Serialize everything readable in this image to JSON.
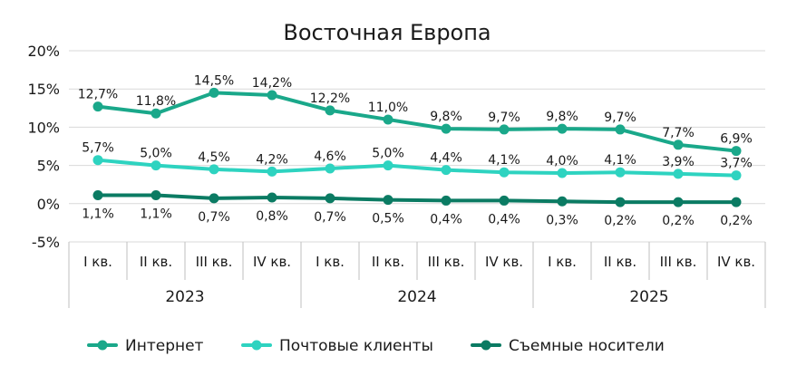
{
  "chart_data": {
    "type": "line",
    "title": "Восточная Европа",
    "ylim": [
      -5,
      20
    ],
    "y_ticks": [
      "-5%",
      "0%",
      "5%",
      "10%",
      "15%",
      "20%"
    ],
    "y_tick_values": [
      -5,
      0,
      5,
      10,
      15,
      20
    ],
    "categories": [
      "I кв.",
      "II кв.",
      "III кв.",
      "IV кв.",
      "I кв.",
      "II кв.",
      "III кв.",
      "IV кв.",
      "I кв.",
      "II кв.",
      "III кв.",
      "IV кв."
    ],
    "groups": [
      {
        "label": "2023",
        "count": 4
      },
      {
        "label": "2024",
        "count": 4
      },
      {
        "label": "2025",
        "count": 4
      }
    ],
    "grid": true,
    "legend_position": "bottom",
    "series": [
      {
        "name": "Интернет",
        "color": "#1aa88a",
        "label_position": "above",
        "values": [
          12.7,
          11.8,
          14.5,
          14.2,
          12.2,
          11.0,
          9.8,
          9.7,
          9.8,
          9.7,
          7.7,
          6.9
        ],
        "labels": [
          "12,7%",
          "11,8%",
          "14,5%",
          "14,2%",
          "12,2%",
          "11,0%",
          "9,8%",
          "9,7%",
          "9,8%",
          "9,7%",
          "7,7%",
          "6,9%"
        ]
      },
      {
        "name": "Почтовые клиенты",
        "color": "#2ed3c0",
        "label_position": "above",
        "values": [
          5.7,
          5.0,
          4.5,
          4.2,
          4.6,
          5.0,
          4.4,
          4.1,
          4.0,
          4.1,
          3.9,
          3.7
        ],
        "labels": [
          "5,7%",
          "5,0%",
          "4,5%",
          "4,2%",
          "4,6%",
          "5,0%",
          "4,4%",
          "4,1%",
          "4,0%",
          "4,1%",
          "3,9%",
          "3,7%"
        ]
      },
      {
        "name": "Съемные носители",
        "color": "#0b7b63",
        "label_position": "below",
        "values": [
          1.1,
          1.1,
          0.7,
          0.8,
          0.7,
          0.5,
          0.4,
          0.4,
          0.3,
          0.2,
          0.2,
          0.2
        ],
        "labels": [
          "1,1%",
          "1,1%",
          "0,7%",
          "0,8%",
          "0,7%",
          "0,5%",
          "0,4%",
          "0,4%",
          "0,3%",
          "0,2%",
          "0,2%",
          "0,2%"
        ]
      }
    ]
  }
}
